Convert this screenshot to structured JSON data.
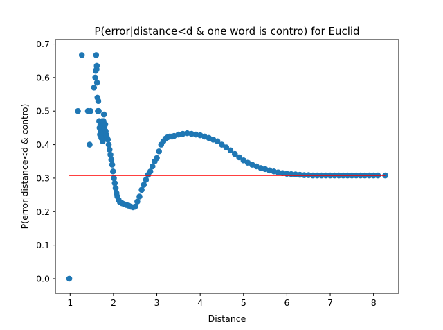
{
  "chart_data": {
    "type": "scatter",
    "title": "P(error|distance<d & one word is contro) for Euclid",
    "xlabel": "Distance",
    "ylabel": "P(error|distance<d & contro)",
    "xlim": [
      0.66,
      8.58
    ],
    "ylim": [
      -0.0435,
      0.7135
    ],
    "xticks": [
      1,
      2,
      3,
      4,
      5,
      6,
      7,
      8
    ],
    "yticks": [
      0.0,
      0.1,
      0.2,
      0.3,
      0.4,
      0.5,
      0.6,
      0.7
    ],
    "grid": false,
    "marker_color": "#1f77b4",
    "series": [
      {
        "points": [
          [
            0.98,
            0.0
          ],
          [
            1.18,
            0.5
          ],
          [
            1.27,
            0.667
          ],
          [
            1.41,
            0.5
          ],
          [
            1.45,
            0.4
          ],
          [
            1.47,
            0.5
          ],
          [
            1.55,
            0.57
          ],
          [
            1.58,
            0.6
          ],
          [
            1.59,
            0.62
          ],
          [
            1.6,
            0.667
          ],
          [
            1.61,
            0.625
          ],
          [
            1.615,
            0.635
          ],
          [
            1.62,
            0.585
          ],
          [
            1.63,
            0.54
          ],
          [
            1.64,
            0.5
          ],
          [
            1.65,
            0.53
          ],
          [
            1.66,
            0.5
          ],
          [
            1.67,
            0.47
          ],
          [
            1.68,
            0.45
          ],
          [
            1.69,
            0.43
          ],
          [
            1.7,
            0.46
          ],
          [
            1.71,
            0.44
          ],
          [
            1.72,
            0.42
          ],
          [
            1.73,
            0.455
          ],
          [
            1.74,
            0.47
          ],
          [
            1.75,
            0.41
          ],
          [
            1.76,
            0.43
          ],
          [
            1.77,
            0.47
          ],
          [
            1.78,
            0.49
          ],
          [
            1.79,
            0.45
          ],
          [
            1.8,
            0.42
          ],
          [
            1.81,
            0.46
          ],
          [
            1.82,
            0.44
          ],
          [
            1.83,
            0.43
          ],
          [
            1.84,
            0.425
          ],
          [
            1.85,
            0.42
          ],
          [
            1.87,
            0.415
          ],
          [
            1.89,
            0.4
          ],
          [
            1.91,
            0.385
          ],
          [
            1.93,
            0.37
          ],
          [
            1.95,
            0.355
          ],
          [
            1.97,
            0.34
          ],
          [
            1.99,
            0.32
          ],
          [
            2.01,
            0.3
          ],
          [
            2.03,
            0.285
          ],
          [
            2.05,
            0.27
          ],
          [
            2.07,
            0.255
          ],
          [
            2.09,
            0.245
          ],
          [
            2.12,
            0.235
          ],
          [
            2.15,
            0.228
          ],
          [
            2.2,
            0.225
          ],
          [
            2.25,
            0.222
          ],
          [
            2.3,
            0.22
          ],
          [
            2.35,
            0.218
          ],
          [
            2.4,
            0.215
          ],
          [
            2.45,
            0.213
          ],
          [
            2.5,
            0.215
          ],
          [
            2.55,
            0.23
          ],
          [
            2.6,
            0.245
          ],
          [
            2.65,
            0.265
          ],
          [
            2.7,
            0.28
          ],
          [
            2.75,
            0.295
          ],
          [
            2.8,
            0.31
          ],
          [
            2.85,
            0.32
          ],
          [
            2.9,
            0.335
          ],
          [
            2.95,
            0.35
          ],
          [
            3.0,
            0.36
          ],
          [
            3.05,
            0.38
          ],
          [
            3.1,
            0.4
          ],
          [
            3.15,
            0.41
          ],
          [
            3.2,
            0.418
          ],
          [
            3.25,
            0.422
          ],
          [
            3.3,
            0.424
          ],
          [
            3.35,
            0.424
          ],
          [
            3.4,
            0.426
          ],
          [
            3.5,
            0.43
          ],
          [
            3.6,
            0.432
          ],
          [
            3.7,
            0.434
          ],
          [
            3.8,
            0.432
          ],
          [
            3.9,
            0.43
          ],
          [
            4.0,
            0.428
          ],
          [
            4.1,
            0.424
          ],
          [
            4.2,
            0.42
          ],
          [
            4.3,
            0.415
          ],
          [
            4.4,
            0.41
          ],
          [
            4.5,
            0.4
          ],
          [
            4.6,
            0.392
          ],
          [
            4.7,
            0.383
          ],
          [
            4.8,
            0.372
          ],
          [
            4.9,
            0.362
          ],
          [
            5.0,
            0.353
          ],
          [
            5.1,
            0.346
          ],
          [
            5.2,
            0.34
          ],
          [
            5.3,
            0.335
          ],
          [
            5.4,
            0.33
          ],
          [
            5.5,
            0.327
          ],
          [
            5.6,
            0.323
          ],
          [
            5.7,
            0.32
          ],
          [
            5.8,
            0.317
          ],
          [
            5.9,
            0.315
          ],
          [
            6.0,
            0.313
          ],
          [
            6.1,
            0.312
          ],
          [
            6.2,
            0.311
          ],
          [
            6.3,
            0.31
          ],
          [
            6.4,
            0.309
          ],
          [
            6.5,
            0.309
          ],
          [
            6.6,
            0.308
          ],
          [
            6.7,
            0.308
          ],
          [
            6.8,
            0.308
          ],
          [
            6.9,
            0.308
          ],
          [
            7.0,
            0.308
          ],
          [
            7.1,
            0.308
          ],
          [
            7.2,
            0.308
          ],
          [
            7.3,
            0.308
          ],
          [
            7.4,
            0.308
          ],
          [
            7.5,
            0.308
          ],
          [
            7.6,
            0.308
          ],
          [
            7.7,
            0.308
          ],
          [
            7.8,
            0.308
          ],
          [
            7.9,
            0.308
          ],
          [
            8.0,
            0.308
          ],
          [
            8.1,
            0.308
          ],
          [
            8.27,
            0.308
          ]
        ]
      }
    ],
    "reference_line": {
      "y": 0.308,
      "x_start": 0.98,
      "x_end": 8.27,
      "color": "#ff0000"
    }
  }
}
